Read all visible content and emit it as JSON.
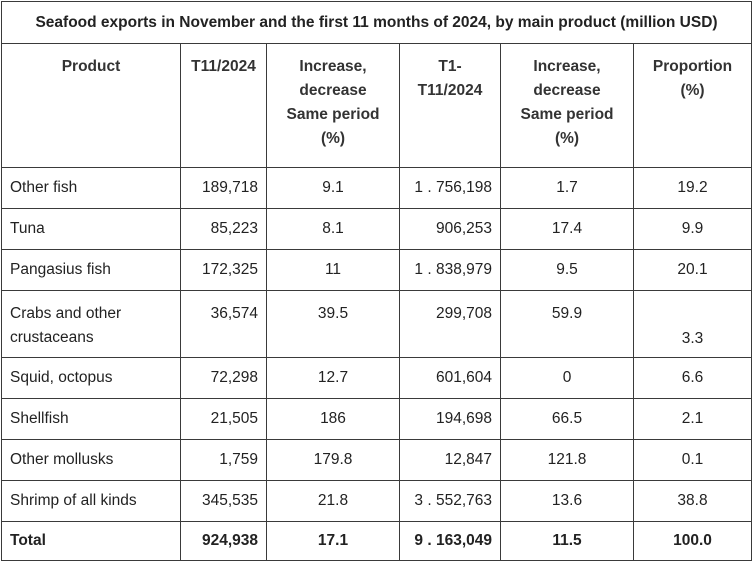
{
  "title": "Seafood exports in November and the first 11 months of 2024, by main product (million USD)",
  "headers": {
    "product": "Product",
    "t11": "T11/2024",
    "inc1": [
      "Increase,",
      "decrease",
      "Same period",
      "(%)"
    ],
    "t1_11": [
      "T1-",
      "T11/2024"
    ],
    "inc2": [
      "Increase,",
      "decrease",
      "Same period",
      "(%)"
    ],
    "proportion": [
      "Proportion",
      "(%)"
    ]
  },
  "rows": [
    {
      "product": "Other fish",
      "t11": "189,718",
      "inc1": "9.1",
      "t1_11": "1 . 756,198",
      "inc2": "1.7",
      "proportion": "19.2"
    },
    {
      "product": "Tuna",
      "t11": "85,223",
      "inc1": "8.1",
      "t1_11": "906,253",
      "inc2": "17.4",
      "proportion": "9.9"
    },
    {
      "product": "Pangasius fish",
      "t11": "172,325",
      "inc1": "11",
      "t1_11": "1 . 838,979",
      "inc2": "9.5",
      "proportion": "20.1"
    },
    {
      "product": "Crabs and other crustaceans",
      "t11": "36,574",
      "inc1": "39.5",
      "t1_11": "299,708",
      "inc2": "59.9",
      "proportion": "3.3"
    },
    {
      "product": "Squid, octopus",
      "t11": "72,298",
      "inc1": "12.7",
      "t1_11": "601,604",
      "inc2": "0",
      "proportion": "6.6"
    },
    {
      "product": "Shellfish",
      "t11": "21,505",
      "inc1": "186",
      "t1_11": "194,698",
      "inc2": "66.5",
      "proportion": "2.1"
    },
    {
      "product": "Other mollusks",
      "t11": "1,759",
      "inc1": "179.8",
      "t1_11": "12,847",
      "inc2": "121.8",
      "proportion": "0.1"
    },
    {
      "product": "Shrimp of all kinds",
      "t11": "345,535",
      "inc1": "21.8",
      "t1_11": "3 . 552,763",
      "inc2": "13.6",
      "proportion": "38.8"
    }
  ],
  "total": {
    "product": "Total",
    "t11": "924,938",
    "inc1": "17.1",
    "t1_11": "9 . 163,049",
    "inc2": "11.5",
    "proportion": "100.0"
  }
}
